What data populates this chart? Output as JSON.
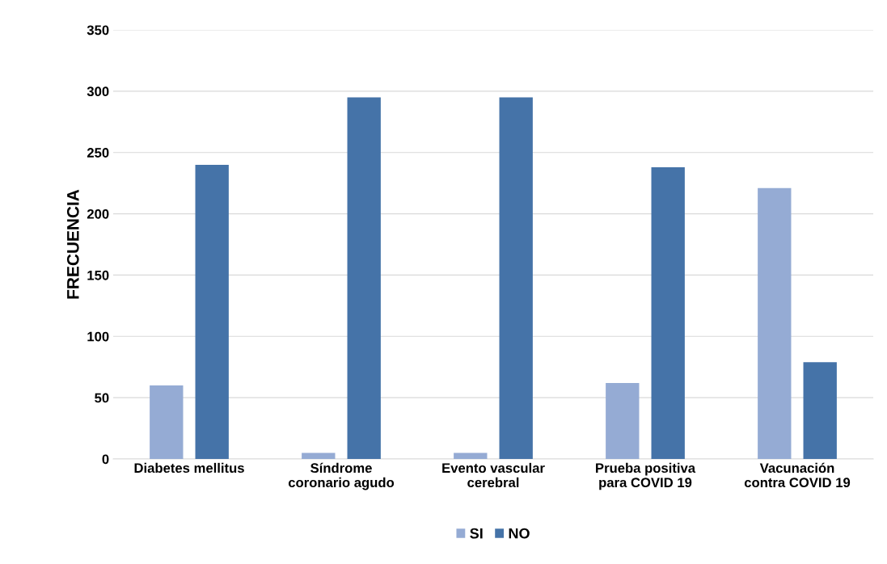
{
  "chart_data": {
    "type": "bar",
    "ylabel": "FRECUENCIA",
    "categories": [
      "Diabetes mellitus",
      "Síndrome\ncoronario agudo",
      "Evento vascular\ncerebral",
      "Prueba positiva\npara COVID 19",
      "Vacunación\ncontra COVID 19"
    ],
    "series": [
      {
        "name": "SI",
        "color": "#95abd4",
        "values": [
          60,
          5,
          5,
          62,
          221
        ]
      },
      {
        "name": "NO",
        "color": "#4573a8",
        "values": [
          240,
          295,
          295,
          238,
          79
        ]
      }
    ],
    "ylim": [
      0,
      350
    ],
    "yticks": [
      0,
      50,
      100,
      150,
      200,
      250,
      300,
      350
    ],
    "grid": "y",
    "legend": "bottom"
  }
}
